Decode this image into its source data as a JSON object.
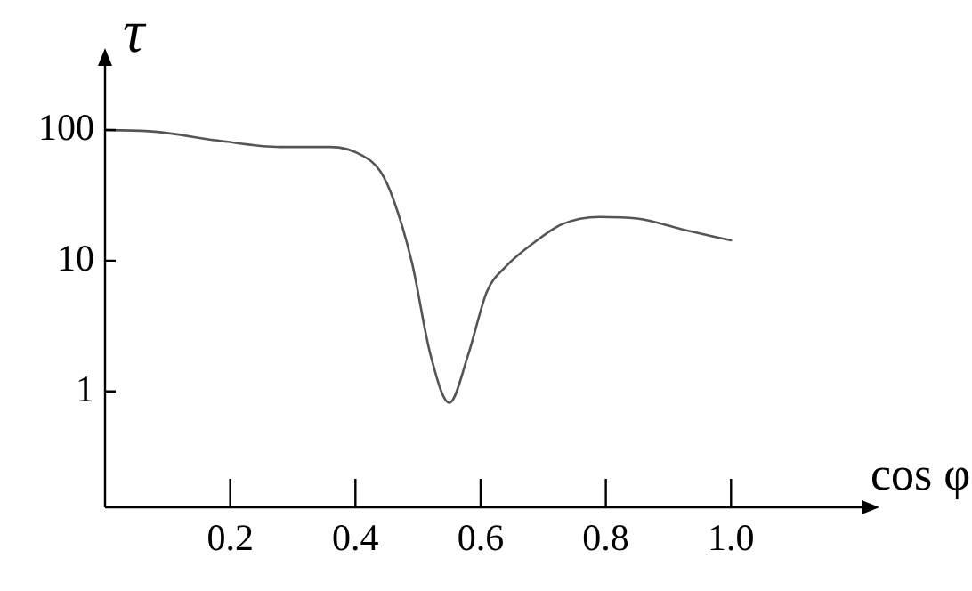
{
  "chart_data": {
    "type": "line",
    "xlabel": "cos φ",
    "ylabel": "τ",
    "log": "y",
    "grid": false,
    "legend": false,
    "marker": "none",
    "line_style": "solid",
    "xlim": [
      0,
      1.22
    ],
    "xticks": [
      0.2,
      0.4,
      0.6,
      0.8,
      {
        "value": 1,
        "label": "1.0"
      }
    ],
    "ylim": [
      0.13,
      350
    ],
    "yticks": [
      1,
      10,
      100
    ],
    "series": [
      {
        "color": "#555555",
        "x": [
          0,
          0.08,
          0.18,
          0.28,
          0.36,
          0.41,
          0.44,
          0.46,
          0.49,
          0.52,
          0.55,
          0.58,
          0.61,
          0.64,
          0.69,
          0.73,
          0.79,
          0.85,
          0.93,
          1.0
        ],
        "values": [
          100,
          97,
          83,
          74,
          74,
          64,
          48,
          30,
          9.8,
          1.9,
          0.82,
          1.9,
          5.8,
          9,
          14.3,
          19,
          21.6,
          21,
          17,
          14.3
        ]
      }
    ]
  }
}
